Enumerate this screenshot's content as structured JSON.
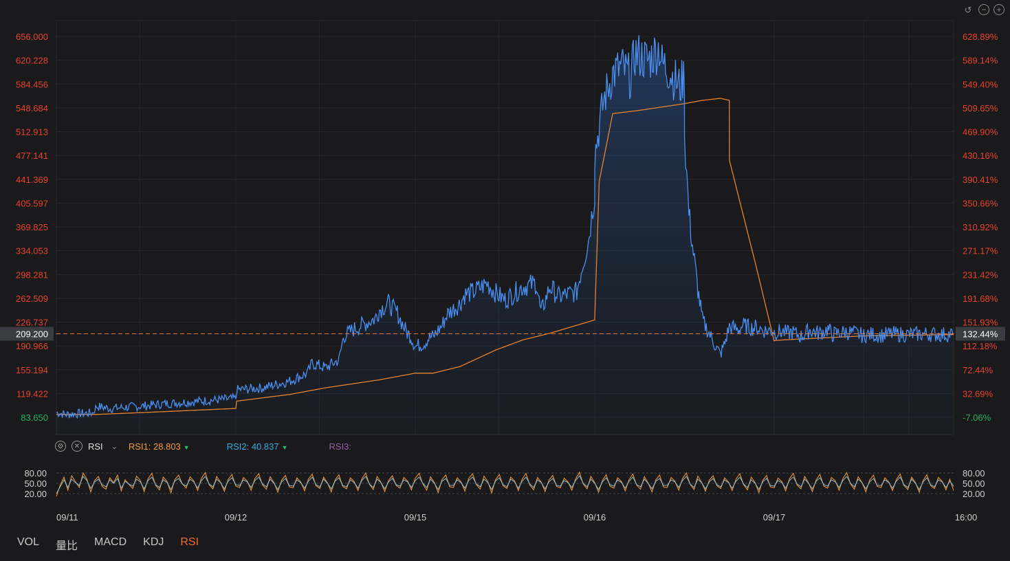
{
  "toolbar": {
    "icons": [
      "undo-icon",
      "zoom-out-icon",
      "zoom-in-icon"
    ]
  },
  "chart_data": {
    "type": "line",
    "title": "",
    "left_axis_ticks": [
      "656.000",
      "620.228",
      "584.456",
      "548.684",
      "512.913",
      "477.141",
      "441.369",
      "405.597",
      "369.825",
      "334.053",
      "298.281",
      "262.509",
      "226.737",
      "190.966",
      "155.194",
      "119.422",
      "83.650"
    ],
    "right_axis_ticks": [
      "628.89%",
      "589.14%",
      "549.40%",
      "509.65%",
      "469.90%",
      "430.16%",
      "390.41%",
      "350.66%",
      "310.92%",
      "271.17%",
      "231.42%",
      "191.68%",
      "151.93%",
      "112.18%",
      "72.44%",
      "32.69%",
      "-7.06%"
    ],
    "ylim": [
      83.65,
      656.0
    ],
    "current_price": {
      "value": "209.200",
      "percent": "132.44%",
      "color": "#e07a33"
    },
    "x_labels": [
      "09/11",
      "09/12",
      "09/15",
      "09/16",
      "09/17",
      "16:00"
    ],
    "colors": {
      "price": "#4a8ff0",
      "average": "#e8822e",
      "up": "#e8412e",
      "down": "#21b35c"
    },
    "series": [
      {
        "name": "price",
        "x": [
          0,
          0.01,
          0.02,
          0.04,
          0.045,
          0.06,
          0.1,
          0.12,
          0.15,
          0.17,
          0.2,
          0.201,
          0.23,
          0.26,
          0.28,
          0.285,
          0.3,
          0.315,
          0.32,
          0.33,
          0.355,
          0.36,
          0.37,
          0.38,
          0.39,
          0.395,
          0.4,
          0.41,
          0.415,
          0.42,
          0.43,
          0.435,
          0.45,
          0.455,
          0.465,
          0.48,
          0.49,
          0.5,
          0.52,
          0.535,
          0.54,
          0.55,
          0.56,
          0.58,
          0.585,
          0.593,
          0.6,
          0.6001,
          0.61,
          0.62,
          0.63,
          0.64,
          0.645,
          0.66,
          0.672,
          0.675,
          0.68,
          0.69,
          0.695,
          0.7,
          0.7001,
          0.705,
          0.71,
          0.715,
          0.72,
          0.735,
          0.74,
          0.745,
          0.75,
          0.76,
          0.765,
          0.77,
          0.775,
          0.78,
          0.79,
          0.8,
          0.8001,
          0.81,
          0.815,
          0.82,
          0.83,
          0.835,
          0.84,
          0.845,
          0.85,
          0.86,
          0.865,
          0.87,
          0.88,
          0.89,
          0.9,
          0.9001,
          0.91,
          0.92,
          0.93,
          0.95,
          0.97,
          0.99,
          1.0
        ],
        "values": [
          91,
          88,
          89,
          90,
          100,
          97,
          101,
          104,
          107,
          109,
          112,
          125,
          128,
          138,
          150,
          165,
          158,
          170,
          205,
          215,
          232,
          245,
          255,
          240,
          212,
          205,
          190,
          195,
          203,
          205,
          222,
          238,
          255,
          268,
          272,
          285,
          270,
          260,
          280,
          285,
          240,
          280,
          265,
          272,
          305,
          350,
          420,
          480,
          560,
          600,
          610,
          595,
          630,
          620,
          640,
          615,
          610,
          590,
          580,
          600,
          510,
          390,
          330,
          275,
          230,
          190,
          178,
          195,
          220,
          215,
          222,
          220,
          218,
          219,
          214,
          214,
          212,
          212,
          210,
          212,
          205,
          210,
          215,
          212,
          210,
          216,
          208,
          210,
          212,
          210,
          206,
          208,
          208,
          207,
          209,
          208,
          209,
          208,
          209
        ]
      },
      {
        "name": "average",
        "x": [
          0,
          0.045,
          0.1,
          0.2,
          0.201,
          0.26,
          0.3,
          0.36,
          0.4,
          0.42,
          0.45,
          0.49,
          0.52,
          0.55,
          0.6,
          0.6001,
          0.605,
          0.62,
          0.65,
          0.7,
          0.72,
          0.74,
          0.75,
          0.7501,
          0.78,
          0.8,
          0.8001,
          0.81,
          0.9,
          1.0
        ],
        "values": [
          88,
          88,
          91,
          97,
          108,
          118,
          128,
          140,
          150,
          150,
          160,
          185,
          200,
          210,
          230,
          235,
          438,
          540,
          545,
          555,
          560,
          563,
          560,
          470,
          310,
          198,
          199,
          200,
          206,
          208
        ]
      }
    ],
    "rsi": {
      "label": "RSI",
      "rsi1_label": "RSI1: 28.803",
      "rsi2_label": "RSI2: 40.837",
      "rsi3_label": "RSI3:",
      "levels": [
        "80.00",
        "50.00",
        "20.00"
      ],
      "ylim": [
        0,
        100
      ],
      "colors": {
        "rsi1": "#f39a3a",
        "rsi2": "#8ab5c9"
      },
      "series": [
        {
          "name": "RSI1",
          "values": [
            12,
            45,
            68,
            30,
            72,
            55,
            38,
            80,
            62,
            25,
            58,
            70,
            41,
            33,
            66,
            52,
            74,
            28,
            60,
            47,
            35,
            71,
            58,
            26,
            63,
            79,
            44,
            31,
            68,
            55,
            22,
            60,
            74,
            48,
            36,
            69,
            57,
            29,
            65,
            81,
            46,
            34,
            70,
            53,
            27,
            61,
            76,
            42,
            38,
            67,
            56,
            30,
            64,
            78,
            45,
            33,
            69,
            52,
            24,
            59,
            73,
            40,
            37,
            66,
            54,
            28,
            62,
            77,
            43,
            35,
            68,
            51,
            25,
            60,
            75,
            41,
            34,
            66,
            55,
            29,
            63,
            80,
            47,
            32,
            70,
            53,
            26,
            58,
            72,
            44,
            36,
            67,
            56,
            31,
            65,
            79,
            48,
            30,
            69,
            52,
            23,
            61,
            74,
            40,
            38,
            66,
            54,
            27,
            64,
            78,
            46,
            33,
            71,
            55,
            22,
            60,
            76,
            43,
            35,
            68,
            57,
            29,
            62,
            79,
            45,
            31,
            67,
            53,
            26,
            59,
            73,
            41,
            37,
            65,
            54,
            30,
            63,
            82,
            48,
            34,
            70,
            52,
            24,
            58,
            75,
            42,
            36,
            66,
            55,
            28,
            61,
            77,
            44,
            33,
            69,
            51,
            25,
            60,
            74,
            39,
            38,
            67,
            56,
            30,
            64,
            80,
            47,
            32,
            71,
            53,
            27,
            59,
            72,
            43,
            35,
            66,
            54,
            29,
            62,
            78,
            46,
            31,
            68,
            52,
            23,
            58,
            73,
            40,
            37,
            65,
            55,
            28,
            63,
            79,
            45,
            34,
            70,
            51,
            26,
            60,
            76,
            42,
            36,
            67,
            57,
            30,
            64,
            81,
            48,
            33,
            69,
            53,
            25,
            59,
            74,
            41,
            38,
            66,
            54,
            29,
            61,
            77,
            44,
            32,
            68,
            52,
            24,
            58,
            75,
            43,
            35,
            67,
            56,
            31,
            62,
            29
          ]
        },
        {
          "name": "RSI2",
          "values": [
            20,
            40,
            60,
            38,
            62,
            52,
            44,
            70,
            58,
            35,
            54,
            62,
            46,
            40,
            60,
            50,
            64,
            36,
            56,
            48,
            42,
            62,
            54,
            34,
            58,
            68,
            46,
            38,
            60,
            52,
            32,
            56,
            64,
            48,
            42,
            62,
            54,
            36,
            58,
            70,
            48,
            40,
            62,
            52,
            34,
            56,
            66,
            46,
            44,
            60,
            54,
            38,
            58,
            68,
            48,
            40,
            62,
            50,
            32,
            54,
            64,
            44,
            42,
            60,
            52,
            36,
            56,
            68,
            46,
            40,
            62,
            50,
            34,
            56,
            66,
            44,
            40,
            60,
            52,
            36,
            58,
            70,
            48,
            38,
            62,
            52,
            34,
            54,
            64,
            46,
            42,
            60,
            54,
            38,
            58,
            68,
            50,
            38,
            62,
            50,
            32,
            56,
            64,
            44,
            44,
            60,
            52,
            36,
            58,
            68,
            48,
            40,
            62,
            52,
            32,
            56,
            66,
            46,
            40,
            62,
            54,
            36,
            56,
            68,
            48,
            38,
            60,
            52,
            34,
            54,
            64,
            44,
            42,
            58,
            52,
            38,
            58,
            72,
            50,
            40,
            62,
            50,
            32,
            54,
            66,
            46,
            42,
            60,
            52,
            36,
            56,
            68,
            46,
            40,
            62,
            50,
            34,
            56,
            64,
            44,
            44,
            60,
            54,
            38,
            58,
            70,
            48,
            38,
            62,
            52,
            34,
            54,
            64,
            46,
            40,
            60,
            52,
            36,
            56,
            68,
            48,
            38,
            60,
            50,
            32,
            54,
            64,
            44,
            42,
            58,
            52,
            36,
            58,
            68,
            48,
            40,
            62,
            50,
            34,
            56,
            66,
            46,
            42,
            60,
            54,
            38,
            58,
            70,
            50,
            40,
            62,
            52,
            34,
            54,
            64,
            44,
            44,
            60,
            52,
            36,
            56,
            68,
            46,
            38,
            62,
            50,
            32,
            54,
            66,
            46,
            40,
            60,
            54,
            38,
            56,
            41
          ]
        }
      ]
    }
  },
  "bottom_tabs": [
    {
      "label": "VOL",
      "active": false
    },
    {
      "label": "量比",
      "active": false
    },
    {
      "label": "MACD",
      "active": false
    },
    {
      "label": "KDJ",
      "active": false
    },
    {
      "label": "RSI",
      "active": true
    }
  ]
}
